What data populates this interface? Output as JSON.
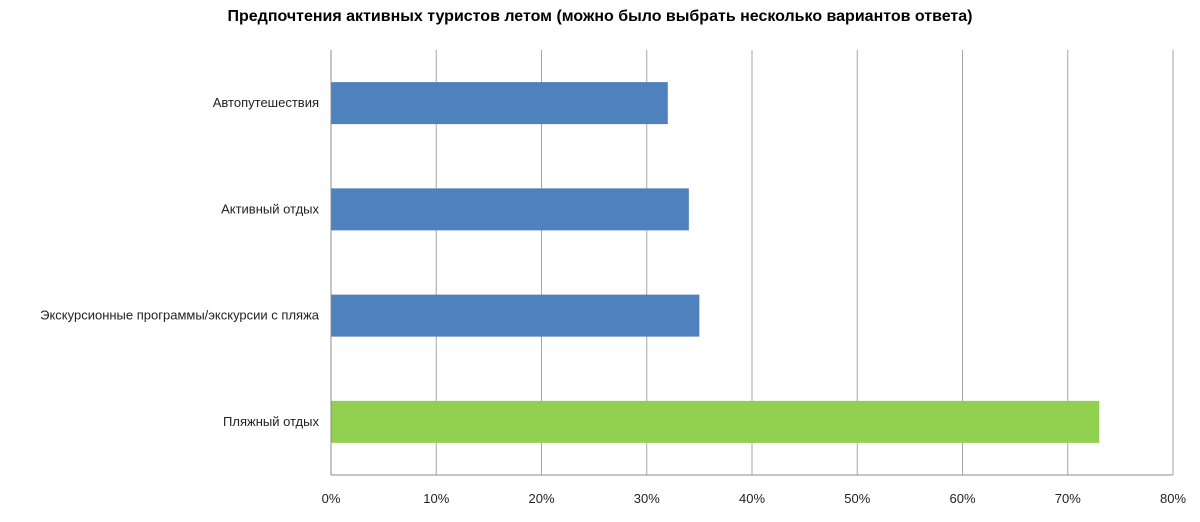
{
  "chart_data": {
    "type": "bar",
    "orientation": "horizontal",
    "title": "Предпочтения активных туристов летом (можно было выбрать несколько вариантов ответа)",
    "categories": [
      "Автопутешествия",
      "Активный отдых",
      "Экскурсионные программы/экскурсии с пляжа",
      "Пляжный отдых"
    ],
    "values": [
      0.32,
      0.34,
      0.35,
      0.73
    ],
    "colors": [
      "#4f81bd",
      "#4f81bd",
      "#4f81bd",
      "#92d050"
    ],
    "xlim": [
      0,
      0.8
    ],
    "xticks": [
      0,
      0.1,
      0.2,
      0.3,
      0.4,
      0.5,
      0.6,
      0.7,
      0.8
    ],
    "xtick_labels": [
      "0%",
      "10%",
      "20%",
      "30%",
      "40%",
      "50%",
      "60%",
      "70%",
      "80%"
    ],
    "xlabel": "",
    "ylabel": "",
    "grid": "vertical",
    "legend": "none"
  }
}
